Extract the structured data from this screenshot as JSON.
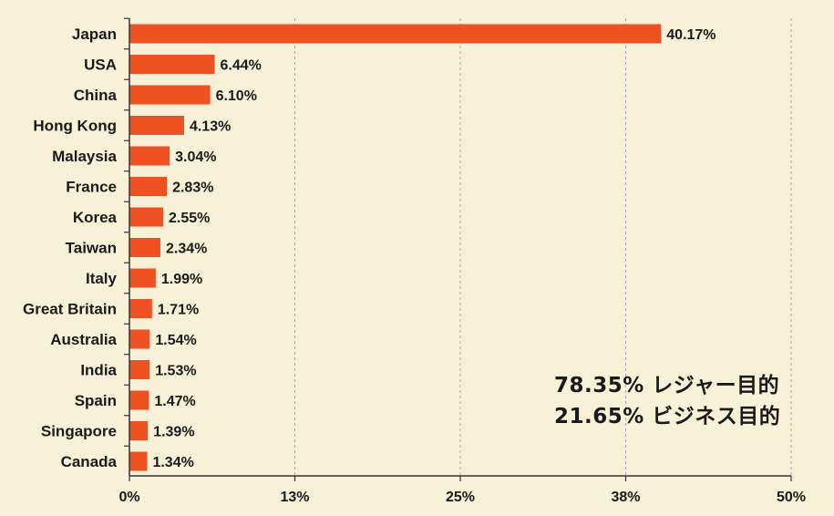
{
  "chart_data": {
    "type": "bar",
    "orientation": "horizontal",
    "categories": [
      "Japan",
      "USA",
      "China",
      "Hong Kong",
      "Malaysia",
      "France",
      "Korea",
      "Taiwan",
      "Italy",
      "Great Britain",
      "Australia",
      "India",
      "Spain",
      "Singapore",
      "Canada"
    ],
    "values": [
      40.17,
      6.44,
      6.1,
      4.13,
      3.04,
      2.83,
      2.55,
      2.34,
      1.99,
      1.71,
      1.54,
      1.53,
      1.47,
      1.39,
      1.34
    ],
    "value_labels": [
      "40.17%",
      "6.44%",
      "6.10%",
      "4.13%",
      "3.04%",
      "2.83%",
      "2.55%",
      "2.34%",
      "1.99%",
      "1.71%",
      "1.54%",
      "1.53%",
      "1.47%",
      "1.39%",
      "1.34%"
    ],
    "x_ticks": [
      0,
      12.5,
      25,
      37.5,
      50
    ],
    "x_tick_labels": [
      "0%",
      "13%",
      "25%",
      "38%",
      "50%"
    ],
    "xlim": [
      0,
      50
    ],
    "grid": "vertical-dashed",
    "bar_color": "#f05123",
    "background_color": "#f8f0d7"
  },
  "note": {
    "line1": "78.35% レジャー目的",
    "line2": "21.65% ビジネス目的"
  }
}
